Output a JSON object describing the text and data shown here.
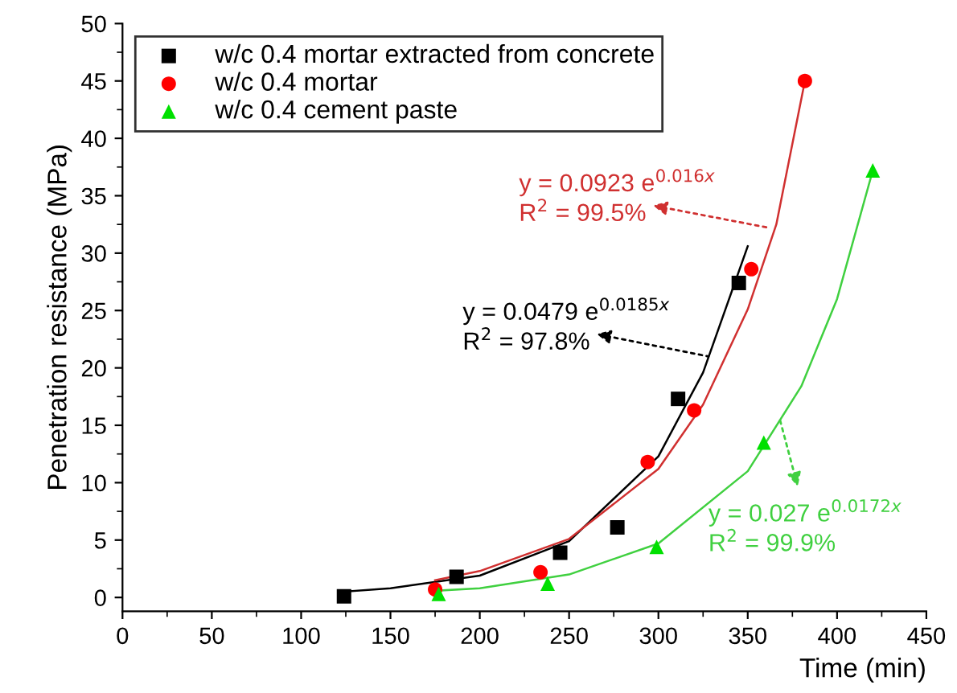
{
  "chart_data": {
    "type": "scatter",
    "xlabel": "Time (min)",
    "ylabel": "Penetration resistance (MPa)",
    "xlim": [
      0,
      450
    ],
    "ylim": [
      -1.2,
      50
    ],
    "xticks": [
      0,
      50,
      100,
      150,
      200,
      250,
      300,
      350,
      400,
      450
    ],
    "yticks": [
      0,
      5,
      10,
      15,
      20,
      25,
      30,
      35,
      40,
      45,
      50
    ],
    "grid": false,
    "legend": "top left",
    "series": [
      {
        "name": "w/c 0.4 mortar extracted from concrete",
        "marker": "square",
        "color": "#000000",
        "x": [
          124,
          187,
          245,
          277,
          311,
          345
        ],
        "values": [
          0.1,
          1.8,
          3.9,
          6.1,
          17.3,
          27.4
        ]
      },
      {
        "name": "w/c 0.4 mortar",
        "marker": "circle",
        "color": "#ff0000",
        "x": [
          175,
          234,
          294,
          320,
          352,
          382
        ],
        "values": [
          0.7,
          2.2,
          11.8,
          16.3,
          28.6,
          45
        ]
      },
      {
        "name": "w/c 0.4 cement paste",
        "marker": "triangle",
        "color": "#00e000",
        "x": [
          177,
          238,
          299,
          359,
          420
        ],
        "values": [
          0.3,
          1.2,
          4.4,
          13.5,
          37.2
        ]
      },
      {
        "type": "line",
        "color": "#000000",
        "x": [
          124,
          150,
          200,
          250,
          300,
          325,
          350
        ],
        "values": [
          0.5,
          0.8,
          1.9,
          4.9,
          12.3,
          19.6,
          30.6
        ]
      },
      {
        "type": "line",
        "color": "#d03030",
        "x": [
          175,
          200,
          250,
          300,
          325,
          350,
          366,
          382
        ],
        "values": [
          1.5,
          2.3,
          5.1,
          11.2,
          16.8,
          25.1,
          32.5,
          45
        ]
      },
      {
        "type": "line",
        "color": "#40d040",
        "x": [
          177,
          200,
          250,
          300,
          350,
          380,
          400,
          420
        ],
        "values": [
          0.6,
          0.8,
          2.0,
          4.7,
          11.0,
          18.4,
          26.0,
          37.2
        ]
      }
    ],
    "annotations": [
      {
        "text": "y = 0.0479 e$^{0.0185x}$",
        "x": 328,
        "y": 21
      },
      {
        "text": "y = 0.0923 e$^{0.016x}$",
        "x": 362,
        "y": 32.2
      },
      {
        "text": "y = 0.027 e$^{0.0172x}$",
        "x": 368,
        "y": 15.5
      },
      "R$^{2}$ = 97.8%",
      "R$^{2}$ = 99.5%",
      "R$^{2}$ = 99.9%"
    ]
  }
}
